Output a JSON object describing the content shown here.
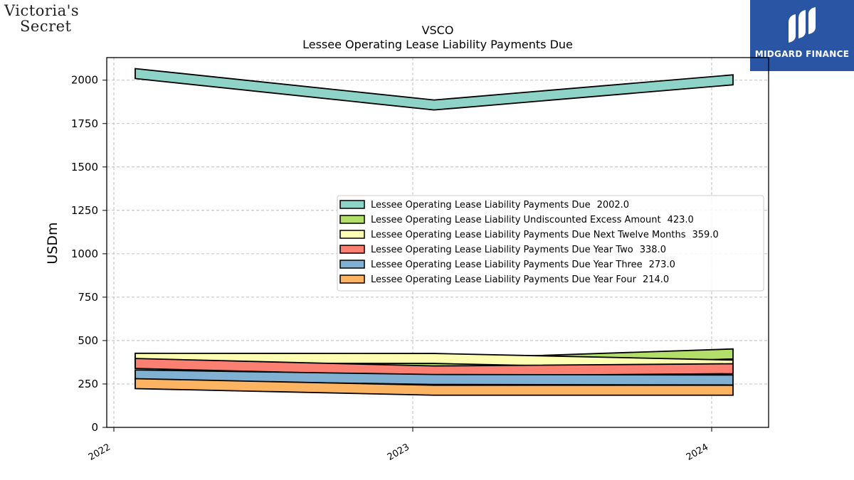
{
  "brand": {
    "line1": "Victoria's",
    "line2": "Secret"
  },
  "publisher": {
    "name": "MIDGARD FINANCE"
  },
  "chart_data": {
    "type": "area",
    "title": "VSCO",
    "subtitle": "Lessee Operating Lease Liability Payments Due",
    "xlabel": "",
    "ylabel": "USDm",
    "categories": [
      "2022",
      "2023",
      "2024"
    ],
    "x_ticks": [
      "2022",
      "2023",
      "2024"
    ],
    "y_ticks": [
      0,
      250,
      500,
      750,
      1000,
      1250,
      1500,
      1750,
      2000
    ],
    "ylim": [
      0,
      2130
    ],
    "grid": true,
    "legend_position": "center-right",
    "series": [
      {
        "name": "Lessee Operating Lease Liability Payments Due",
        "legend_value": "2002.0",
        "color": "#8dd3c7",
        "values": [
          2038,
          1857,
          2002
        ]
      },
      {
        "name": "Lessee Operating Lease Liability Undiscounted Excess Amount",
        "legend_value": "423.0",
        "color": "#b3de69",
        "values": [
          380,
          365,
          423
        ]
      },
      {
        "name": "Lessee Operating Lease Liability Payments Due Next Twelve Months",
        "legend_value": "359.0",
        "color": "#ffffb3",
        "values": [
          398,
          397,
          359
        ]
      },
      {
        "name": "Lessee Operating Lease Liability Payments Due Year Two",
        "legend_value": "338.0",
        "color": "#fb8072",
        "values": [
          368,
          325,
          338
        ]
      },
      {
        "name": "Lessee Operating Lease Liability Payments Due Year Three",
        "legend_value": "273.0",
        "color": "#80b1d3",
        "values": [
          302,
          276,
          273
        ]
      },
      {
        "name": "Lessee Operating Lease Liability Payments Due Year Four",
        "legend_value": "214.0",
        "color": "#fdb462",
        "values": [
          252,
          214,
          214
        ]
      }
    ]
  }
}
